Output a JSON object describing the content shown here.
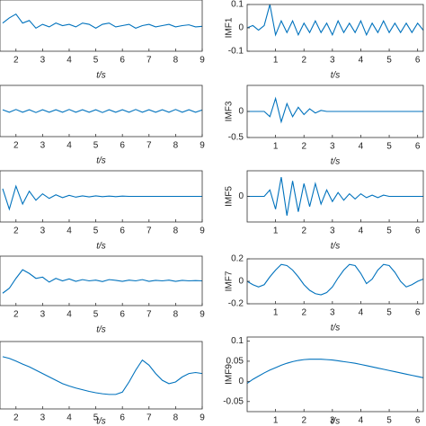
{
  "chart_data": [
    {
      "type": "line",
      "xlabel": "t/s",
      "xlim": [
        1.4,
        9
      ],
      "xticks": [
        2,
        3,
        4,
        5,
        6,
        7,
        8,
        9
      ],
      "ylim": [
        -1,
        1
      ],
      "color": "#0072bd",
      "x": [
        1.5,
        1.75,
        2,
        2.25,
        2.5,
        2.75,
        3,
        3.25,
        3.5,
        3.75,
        4,
        4.25,
        4.5,
        4.75,
        5,
        5.25,
        5.5,
        5.75,
        6,
        6.25,
        6.5,
        6.75,
        7,
        7.25,
        7.5,
        7.75,
        8,
        8.25,
        8.5,
        8.75,
        9
      ],
      "values": [
        0.1,
        0.3,
        0.45,
        0.1,
        0.2,
        -0.1,
        0.05,
        -0.05,
        0.1,
        0,
        0.05,
        -0.05,
        0.1,
        0.05,
        -0.1,
        0.05,
        0.1,
        -0.05,
        0,
        0.05,
        -0.1,
        0,
        0.05,
        -0.05,
        0,
        0.05,
        -0.05,
        0,
        0.03,
        -0.05,
        -0.03
      ]
    },
    {
      "type": "line",
      "xlabel": "t/s",
      "xlim": [
        1.4,
        9
      ],
      "xticks": [
        2,
        3,
        4,
        5,
        6,
        7,
        8,
        9
      ],
      "ylim": [
        -1,
        1
      ],
      "color": "#0072bd",
      "x": [
        1.5,
        1.75,
        2,
        2.25,
        2.5,
        2.75,
        3,
        3.25,
        3.5,
        3.75,
        4,
        4.25,
        4.5,
        4.75,
        5,
        5.25,
        5.5,
        5.75,
        6,
        6.25,
        6.5,
        6.75,
        7,
        7.25,
        7.5,
        7.75,
        8,
        8.25,
        8.5,
        8.75,
        9
      ],
      "values": [
        0.05,
        -0.05,
        0.06,
        -0.05,
        0.05,
        -0.06,
        0.05,
        -0.05,
        0.05,
        -0.05,
        0.06,
        -0.05,
        0.05,
        -0.05,
        0.05,
        -0.06,
        0.05,
        -0.05,
        0.05,
        -0.05,
        0.06,
        -0.05,
        0.05,
        -0.05,
        0.05,
        -0.05,
        0.06,
        -0.05,
        0.05,
        -0.05,
        0.04
      ]
    },
    {
      "type": "line",
      "xlabel": "t/s",
      "xlim": [
        1.4,
        9
      ],
      "xticks": [
        2,
        3,
        4,
        5,
        6,
        7,
        8,
        9
      ],
      "ylim": [
        -1,
        1
      ],
      "color": "#0072bd",
      "x": [
        1.5,
        1.75,
        2,
        2.25,
        2.5,
        2.75,
        3,
        3.25,
        3.5,
        3.75,
        4,
        4.25,
        4.5,
        4.75,
        5,
        5.25,
        5.5,
        5.75,
        6,
        6.25,
        6.5,
        6.75,
        7,
        7.25,
        7.5,
        7.75,
        8,
        8.25,
        8.5,
        8.75,
        9
      ],
      "values": [
        0.3,
        -0.5,
        0.4,
        -0.3,
        0.2,
        -0.15,
        0.1,
        -0.08,
        0.06,
        -0.05,
        0.04,
        -0.03,
        0.02,
        -0.02,
        0.02,
        -0.01,
        0.01,
        -0.01,
        0.01,
        0,
        0,
        0,
        0,
        0,
        0,
        0,
        0,
        0,
        0,
        0,
        0
      ]
    },
    {
      "type": "line",
      "xlabel": "t/s",
      "xlim": [
        1.4,
        9
      ],
      "xticks": [
        2,
        3,
        4,
        5,
        6,
        7,
        8,
        9
      ],
      "ylim": [
        -1,
        1
      ],
      "color": "#0072bd",
      "x": [
        1.5,
        1.75,
        2,
        2.25,
        2.5,
        2.75,
        3,
        3.25,
        3.5,
        3.75,
        4,
        4.25,
        4.5,
        4.75,
        5,
        5.25,
        5.5,
        5.75,
        6,
        6.25,
        6.5,
        6.75,
        7,
        7.25,
        7.5,
        7.75,
        8,
        8.25,
        8.5,
        8.75,
        9
      ],
      "values": [
        -0.5,
        -0.3,
        0.1,
        0.45,
        0.3,
        0.1,
        0.15,
        -0.05,
        0.1,
        0,
        0.08,
        -0.02,
        0.05,
        0,
        0.03,
        -0.03,
        0.05,
        0.02,
        -0.02,
        0.03,
        0,
        0.05,
        -0.02,
        0.02,
        0,
        0.03,
        -0.02,
        0.02,
        0,
        0.01,
        0
      ]
    },
    {
      "type": "line",
      "xlabel": "t/s",
      "xlim": [
        1.4,
        9
      ],
      "xticks": [
        2,
        3,
        4,
        5,
        6,
        7,
        8,
        9
      ],
      "ylim": [
        -1,
        1
      ],
      "color": "#0072bd",
      "x": [
        1.5,
        1.75,
        2,
        2.25,
        2.5,
        2.75,
        3,
        3.25,
        3.5,
        3.75,
        4,
        4.25,
        4.5,
        4.75,
        5,
        5.25,
        5.5,
        5.75,
        6,
        6.25,
        6.5,
        6.75,
        7,
        7.25,
        7.5,
        7.75,
        8,
        8.25,
        8.5,
        8.75,
        9
      ],
      "values": [
        0.55,
        0.5,
        0.42,
        0.33,
        0.25,
        0.15,
        0.05,
        -0.05,
        -0.15,
        -0.25,
        -0.32,
        -0.38,
        -0.43,
        -0.48,
        -0.52,
        -0.55,
        -0.57,
        -0.57,
        -0.5,
        -0.2,
        0.15,
        0.45,
        0.3,
        0.05,
        -0.15,
        -0.25,
        -0.2,
        -0.05,
        0.05,
        0.08,
        0.05
      ]
    },
    {
      "type": "line",
      "ylabel": "IMF1",
      "xlabel": "t/s",
      "xlim": [
        0,
        6.2
      ],
      "xticks": [
        1,
        2,
        3,
        4,
        5,
        6
      ],
      "ylim": [
        -0.1,
        0.1
      ],
      "yticks": [
        -0.1,
        0,
        0.1
      ],
      "color": "#0072bd",
      "x": [
        0,
        0.2,
        0.4,
        0.6,
        0.8,
        1,
        1.2,
        1.4,
        1.6,
        1.8,
        2,
        2.2,
        2.4,
        2.6,
        2.8,
        3,
        3.2,
        3.4,
        3.6,
        3.8,
        4,
        4.2,
        4.4,
        4.6,
        4.8,
        5,
        5.2,
        5.4,
        5.6,
        5.8,
        6,
        6.2
      ],
      "values": [
        0,
        0.01,
        -0.01,
        0.01,
        0.1,
        -0.03,
        0.03,
        -0.02,
        0.03,
        -0.03,
        0.02,
        -0.02,
        0.03,
        -0.02,
        0.02,
        -0.03,
        0.03,
        -0.02,
        0.02,
        -0.02,
        0.03,
        -0.03,
        0.02,
        -0.02,
        0.03,
        -0.02,
        0.02,
        -0.02,
        0.02,
        -0.02,
        0.02,
        -0.01
      ]
    },
    {
      "type": "line",
      "ylabel": "IMF3",
      "xlabel": "t/s",
      "xlim": [
        0,
        6.2
      ],
      "xticks": [
        1,
        2,
        3,
        4,
        5,
        6
      ],
      "ylim": [
        -0.5,
        0.5
      ],
      "yticks": [
        -0.5,
        0
      ],
      "color": "#0072bd",
      "x": [
        0,
        0.2,
        0.4,
        0.6,
        0.8,
        1,
        1.2,
        1.4,
        1.6,
        1.8,
        2,
        2.2,
        2.4,
        2.6,
        2.8,
        3,
        3.2,
        3.4,
        3.6,
        3.8,
        4,
        4.2,
        4.4,
        4.6,
        4.8,
        5,
        5.2,
        5.4,
        5.6,
        5.8,
        6,
        6.2
      ],
      "values": [
        0,
        0,
        0,
        0,
        -0.1,
        0.25,
        -0.2,
        0.15,
        -0.1,
        0.08,
        -0.06,
        0.05,
        -0.03,
        0.02,
        0,
        0,
        0,
        0,
        0,
        0,
        0,
        0,
        0,
        0,
        0,
        0,
        0,
        0,
        0,
        0,
        0,
        0
      ]
    },
    {
      "type": "line",
      "ylabel": "IMF5",
      "xlabel": "t/s",
      "xlim": [
        0,
        6.2
      ],
      "xticks": [
        1,
        2,
        3,
        4,
        5,
        6
      ],
      "ylim": [
        -0.2,
        0.2
      ],
      "yticks": [
        0
      ],
      "color": "#0072bd",
      "x": [
        0,
        0.2,
        0.4,
        0.6,
        0.8,
        1,
        1.2,
        1.4,
        1.6,
        1.8,
        2,
        2.2,
        2.4,
        2.6,
        2.8,
        3,
        3.2,
        3.4,
        3.6,
        3.8,
        4,
        4.2,
        4.4,
        4.6,
        4.8,
        5,
        5.2,
        5.4,
        5.6,
        5.8,
        6,
        6.2
      ],
      "values": [
        0,
        0,
        0,
        0,
        0.05,
        -0.1,
        0.15,
        -0.15,
        0.12,
        -0.12,
        0.1,
        -0.08,
        0.1,
        -0.06,
        0.05,
        -0.04,
        0.03,
        -0.03,
        0.02,
        -0.02,
        0.02,
        -0.01,
        0.01,
        -0.01,
        0.01,
        0,
        0,
        0,
        0,
        0,
        0,
        0
      ]
    },
    {
      "type": "line",
      "ylabel": "IMF7",
      "xlabel": "t/s",
      "xlim": [
        0,
        6.2
      ],
      "xticks": [
        1,
        2,
        3,
        4,
        5,
        6
      ],
      "ylim": [
        -0.2,
        0.2
      ],
      "yticks": [
        -0.2,
        0,
        0.2
      ],
      "color": "#0072bd",
      "x": [
        0,
        0.2,
        0.4,
        0.6,
        0.8,
        1,
        1.2,
        1.4,
        1.6,
        1.8,
        2,
        2.2,
        2.4,
        2.6,
        2.8,
        3,
        3.2,
        3.4,
        3.6,
        3.8,
        4,
        4.2,
        4.4,
        4.6,
        4.8,
        5,
        5.2,
        5.4,
        5.6,
        5.8,
        6,
        6.2
      ],
      "values": [
        0,
        -0.03,
        -0.05,
        -0.03,
        0.04,
        0.1,
        0.15,
        0.14,
        0.1,
        0.04,
        -0.03,
        -0.08,
        -0.11,
        -0.12,
        -0.1,
        -0.05,
        0.03,
        0.1,
        0.15,
        0.14,
        0.07,
        -0.02,
        0.02,
        0.1,
        0.15,
        0.14,
        0.08,
        0,
        -0.05,
        -0.03,
        0,
        0.02
      ]
    },
    {
      "type": "line",
      "ylabel": "IMF9",
      "xlabel": "t/s",
      "xlim": [
        0,
        6.2
      ],
      "xticks": [
        1,
        2,
        3,
        4,
        5,
        6
      ],
      "ylim": [
        -0.075,
        0.11
      ],
      "yticks": [
        -0.05,
        0,
        0.05,
        0.1
      ],
      "color": "#0072bd",
      "x": [
        0,
        0.2,
        0.4,
        0.6,
        0.8,
        1,
        1.2,
        1.4,
        1.6,
        1.8,
        2,
        2.2,
        2.4,
        2.6,
        2.8,
        3,
        3.2,
        3.4,
        3.6,
        3.8,
        4,
        4.2,
        4.4,
        4.6,
        4.8,
        5,
        5.2,
        5.4,
        5.6,
        5.8,
        6,
        6.2
      ],
      "values": [
        -0.005,
        0.005,
        0.013,
        0.021,
        0.028,
        0.034,
        0.04,
        0.045,
        0.049,
        0.052,
        0.054,
        0.055,
        0.055,
        0.055,
        0.054,
        0.053,
        0.051,
        0.049,
        0.047,
        0.045,
        0.042,
        0.039,
        0.036,
        0.033,
        0.03,
        0.027,
        0.024,
        0.021,
        0.018,
        0.015,
        0.012,
        0.009
      ]
    }
  ]
}
